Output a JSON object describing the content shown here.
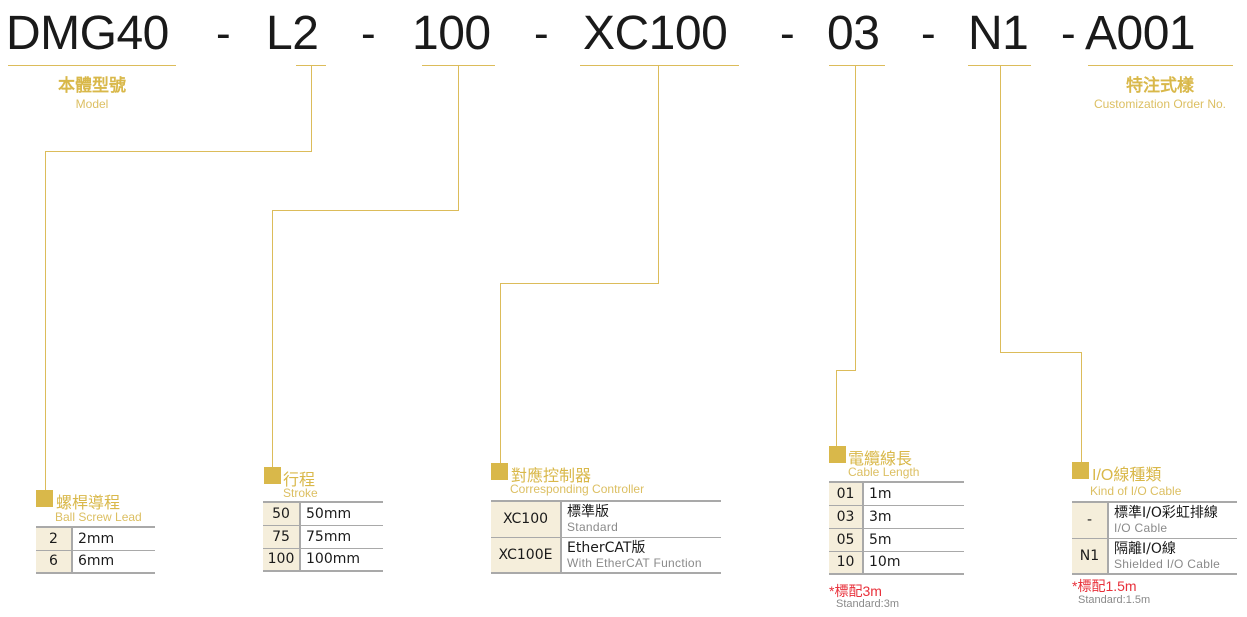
{
  "codes": {
    "model": "DMG40",
    "lead": "L2",
    "stroke": "100",
    "controller": "XC100",
    "cable_length": "03",
    "io_cable": "N1",
    "custom": "A001",
    "separator": "-"
  },
  "labels": {
    "model_zh": "本體型號",
    "model_en": "Model",
    "custom_zh": "特注式樣",
    "custom_en": "Customization Order No."
  },
  "colors": {
    "accent": "#d9b84a",
    "cell_bg": "#f5eedb",
    "note": "#e8303a"
  },
  "lead": {
    "title_zh": "螺桿導程",
    "title_en": "Ball Screw Lead",
    "rows": [
      {
        "code": "2",
        "value": "2mm"
      },
      {
        "code": "6",
        "value": "6mm"
      }
    ]
  },
  "stroke": {
    "title_zh": "行程",
    "title_en": "Stroke",
    "rows": [
      {
        "code": "50",
        "value": "50mm"
      },
      {
        "code": "75",
        "value": "75mm"
      },
      {
        "code": "100",
        "value": "100mm"
      }
    ]
  },
  "controller": {
    "title_zh": "對應控制器",
    "title_en": "Corresponding Controller",
    "rows": [
      {
        "code": "XC100",
        "value": "標準版",
        "sub": "Standard"
      },
      {
        "code": "XC100E",
        "value": "EtherCAT版",
        "sub": "With EtherCAT Function"
      }
    ]
  },
  "cable_length": {
    "title_zh": "電纜線長",
    "title_en": "Cable Length",
    "rows": [
      {
        "code": "01",
        "value": "1m"
      },
      {
        "code": "03",
        "value": "3m"
      },
      {
        "code": "05",
        "value": "5m"
      },
      {
        "code": "10",
        "value": "10m"
      }
    ],
    "note_zh": "*標配3m",
    "note_en": "Standard:3m"
  },
  "io_cable": {
    "title_zh": "I/O線種類",
    "title_en": "Kind of I/O Cable",
    "rows": [
      {
        "code": "-",
        "value": "標準I/O彩虹排線",
        "sub": "I/O Cable"
      },
      {
        "code": "N1",
        "value": "隔離I/O線",
        "sub": "Shielded I/O Cable"
      }
    ],
    "note_zh": "*標配1.5m",
    "note_en": "Standard:1.5m"
  }
}
